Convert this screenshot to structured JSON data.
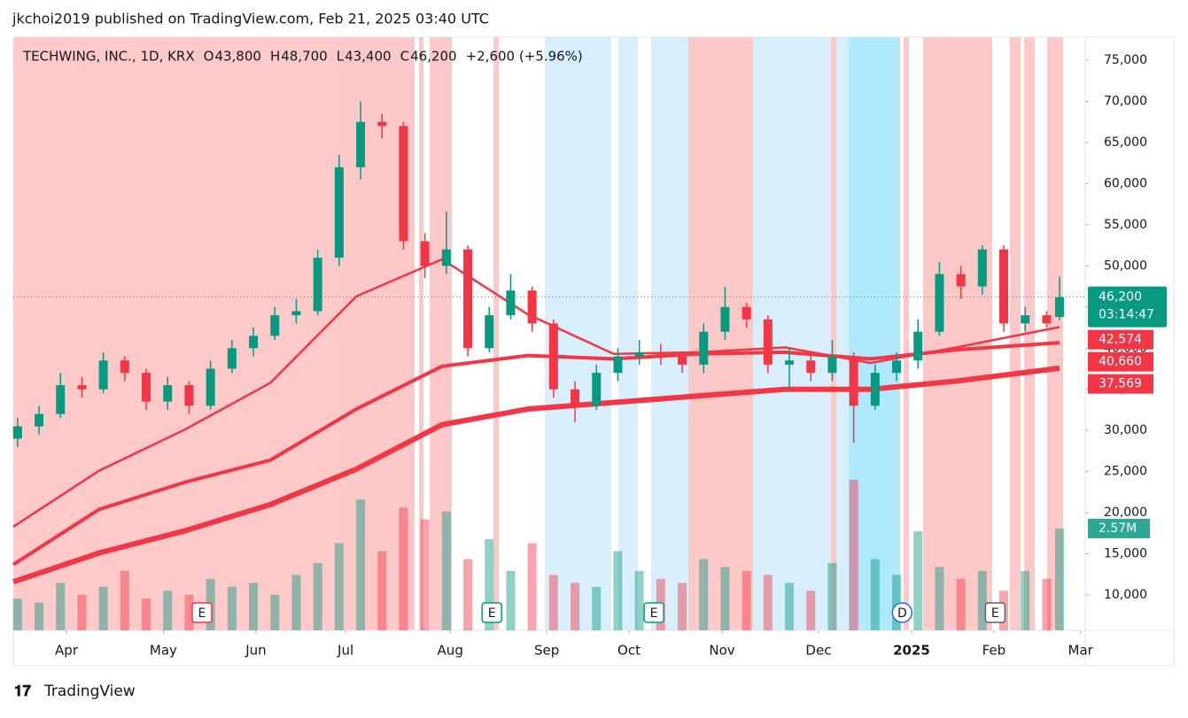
{
  "header": "jkchoi2019 published on TradingView.com, Feb 21, 2025 03:40 UTC",
  "footer": "TradingView",
  "chart_data": {
    "type": "candlestick",
    "title": "TECHWING, INC., 1D, KRX",
    "ohlc_letters": [
      "O",
      "H",
      "L",
      "C"
    ],
    "ohlc_labels": [
      "43,800",
      "48,700",
      "43,400",
      "46,200"
    ],
    "change": "+2,600 (+5.96%)",
    "countdown": "03:14:47",
    "up_color": "#089981",
    "down_color": "#f23645",
    "xlim": [
      0,
      250
    ],
    "ylim": [
      5700,
      77800
    ],
    "xticks": [
      {
        "value": 12.4,
        "label": "Apr"
      },
      {
        "value": 35,
        "label": "May"
      },
      {
        "value": 56.6,
        "label": "Jun"
      },
      {
        "value": 77.5,
        "label": "Jul"
      },
      {
        "value": 101.9,
        "label": "Aug"
      },
      {
        "value": 124.4,
        "label": "Sep"
      },
      {
        "value": 143.6,
        "label": "Oct"
      },
      {
        "value": 165.3,
        "label": "Nov"
      },
      {
        "value": 187.8,
        "label": "Dec"
      },
      {
        "value": 209.5,
        "label": "2025"
      },
      {
        "value": 228.7,
        "label": "Feb"
      },
      {
        "value": 248.9,
        "label": "Mar"
      }
    ],
    "yticks": [
      {
        "value": 10000,
        "label": "10,000"
      },
      {
        "value": 15000,
        "label": "15,000"
      },
      {
        "value": 20000,
        "label": "20,000"
      },
      {
        "value": 25000,
        "label": "25,000"
      },
      {
        "value": 30000,
        "label": "30,000"
      },
      {
        "value": 35000,
        "label": "35,000"
      },
      {
        "value": 40000,
        "label": "40,000"
      },
      {
        "value": 45000,
        "label": "45,000"
      },
      {
        "value": 50000,
        "label": "50,000"
      },
      {
        "value": 55000,
        "label": "55,000"
      },
      {
        "value": 60000,
        "label": "60,000"
      },
      {
        "value": 65000,
        "label": "65,000"
      },
      {
        "value": 70000,
        "label": "70,000"
      },
      {
        "value": 75000,
        "label": "75,000"
      }
    ],
    "x": [
      1,
      6,
      11,
      16,
      21,
      26,
      31,
      36,
      41,
      46,
      51,
      56,
      61,
      66,
      71,
      76,
      81,
      86,
      91,
      96,
      101,
      106,
      111,
      116,
      121,
      126,
      131,
      136,
      141,
      146,
      151,
      156,
      161,
      166,
      171,
      176,
      181,
      186,
      191,
      196,
      201,
      206,
      211,
      216,
      221,
      226,
      231,
      236,
      241,
      244
    ],
    "open": [
      29000,
      30500,
      32000,
      35500,
      35000,
      38500,
      37000,
      33500,
      35500,
      33000,
      37500,
      40000,
      41500,
      44000,
      44500,
      51000,
      62000,
      67500,
      67000,
      53000,
      50000,
      52000,
      40000,
      44000,
      47000,
      43000,
      35000,
      33000,
      37000,
      39000,
      39500,
      39000,
      38000,
      42000,
      45000,
      43500,
      38000,
      38500,
      37000,
      39000,
      33000,
      37000,
      38500,
      42000,
      49000,
      47500,
      52000,
      43000,
      44000,
      43800
    ],
    "high": [
      31500,
      33000,
      37000,
      36500,
      39500,
      39000,
      37500,
      36500,
      36000,
      38500,
      41000,
      42500,
      45000,
      46000,
      52000,
      63500,
      70000,
      68500,
      67500,
      54000,
      56600,
      52500,
      45000,
      49000,
      47500,
      43500,
      36000,
      38000,
      40000,
      41000,
      40500,
      39500,
      43000,
      47500,
      45500,
      44000,
      40000,
      39500,
      41000,
      39500,
      38000,
      39500,
      43500,
      50500,
      50000,
      52500,
      52500,
      45000,
      44500,
      48700
    ],
    "low": [
      28000,
      29500,
      31500,
      34000,
      34500,
      36000,
      32500,
      32500,
      32000,
      32500,
      37000,
      39000,
      41000,
      43000,
      44000,
      50000,
      60500,
      65500,
      52000,
      48500,
      49000,
      39000,
      39500,
      43500,
      42000,
      34000,
      31000,
      32500,
      36000,
      38000,
      38000,
      37000,
      37000,
      41000,
      42500,
      37000,
      35000,
      36000,
      36000,
      28500,
      32500,
      36000,
      37500,
      41500,
      46000,
      46500,
      42000,
      42000,
      42500,
      43400
    ],
    "close": [
      30500,
      32000,
      35500,
      35000,
      38500,
      37000,
      33500,
      35500,
      33000,
      37500,
      40000,
      41500,
      44000,
      44500,
      51000,
      62000,
      67500,
      67000,
      53000,
      50000,
      52000,
      40000,
      44000,
      47000,
      43000,
      35000,
      33000,
      37000,
      39000,
      39500,
      39000,
      38000,
      42000,
      45000,
      43500,
      38000,
      38500,
      37000,
      39000,
      33000,
      37000,
      38500,
      42000,
      49000,
      47500,
      52000,
      43000,
      44000,
      43000,
      46200
    ],
    "volume": [
      800000,
      700000,
      1200000,
      900000,
      1100000,
      1500000,
      800000,
      1000000,
      900000,
      1300000,
      1100000,
      1200000,
      900000,
      1400000,
      1700000,
      2200000,
      3300000,
      2000000,
      3100000,
      2800000,
      3000000,
      1800000,
      2300000,
      1500000,
      2200000,
      1400000,
      1200000,
      1100000,
      2000000,
      1500000,
      1300000,
      1200000,
      1800000,
      1600000,
      1500000,
      1400000,
      1200000,
      1000000,
      1700000,
      3800000,
      1800000,
      1400000,
      2500000,
      1600000,
      1300000,
      1500000,
      1000000,
      1500000,
      1300000,
      2570000
    ],
    "volume_last_label": "2.57M",
    "series": [
      {
        "color": "#f23645",
        "width": 2.5,
        "x": [
          0,
          20,
          40,
          60,
          80,
          100,
          120,
          140,
          160,
          180,
          200,
          220,
          244
        ],
        "values": [
          18300,
          25100,
          30100,
          35800,
          46300,
          50800,
          44100,
          39300,
          39500,
          40100,
          38200,
          40100,
          42574
        ],
        "last_label": "42,574"
      },
      {
        "color": "#f23645",
        "width": 4,
        "x": [
          0,
          20,
          40,
          60,
          80,
          100,
          120,
          140,
          160,
          180,
          200,
          220,
          244
        ],
        "values": [
          13700,
          20400,
          23700,
          26400,
          32600,
          37800,
          39100,
          38700,
          39300,
          39500,
          38700,
          39800,
          40660
        ],
        "last_label": "40,660"
      },
      {
        "color": "#f23645",
        "width": 6,
        "x": [
          0,
          20,
          40,
          60,
          80,
          100,
          120,
          140,
          160,
          180,
          200,
          220,
          244
        ],
        "values": [
          11600,
          15100,
          17800,
          21000,
          25300,
          30700,
          32600,
          33400,
          34200,
          35000,
          35000,
          36000,
          37569
        ],
        "last_label": "37,569"
      }
    ],
    "events": [
      {
        "x": 44,
        "label": "E",
        "color": "#f23645"
      },
      {
        "x": 111.6,
        "label": "E",
        "color": "#089981"
      },
      {
        "x": 149.4,
        "label": "E",
        "color": "#089981"
      },
      {
        "x": 207.3,
        "label": "D",
        "color": "#2962ff"
      },
      {
        "x": 229,
        "label": "E",
        "color": "#5d606b"
      }
    ]
  }
}
